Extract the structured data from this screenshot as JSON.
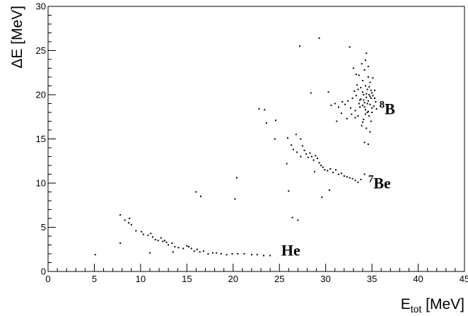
{
  "chart_data": {
    "type": "scatter",
    "xlabel": {
      "main": "E",
      "sub": "tot",
      "unit": " [MeV]"
    },
    "ylabel": "ΔE [MeV]",
    "xlim": [
      0,
      45
    ],
    "ylim": [
      0,
      30
    ],
    "xticks": [
      "0",
      "5",
      "10",
      "15",
      "20",
      "25",
      "30",
      "35",
      "40",
      "45"
    ],
    "yticks": [
      "0",
      "5",
      "10",
      "15",
      "20",
      "25",
      "30"
    ],
    "grid": false,
    "annotations": [
      {
        "sup": "8",
        "base": "B",
        "x": 35.8,
        "y": 17.8
      },
      {
        "sup": "7",
        "base": "Be",
        "x": 34.6,
        "y": 9.4
      },
      {
        "sup": "",
        "base": "He",
        "x": 25.2,
        "y": 1.8
      }
    ],
    "series": [
      {
        "marker_color": "#000000",
        "points": [
          [
            5.1,
            1.9
          ],
          [
            7.8,
            6.4
          ],
          [
            7.8,
            3.2
          ],
          [
            8.3,
            5.8
          ],
          [
            8.7,
            5.5
          ],
          [
            8.8,
            6.0
          ],
          [
            9.0,
            5.3
          ],
          [
            9.5,
            4.6
          ],
          [
            10.1,
            4.5
          ],
          [
            10.3,
            4.2
          ],
          [
            10.8,
            4.1
          ],
          [
            11.1,
            4.3
          ],
          [
            11.3,
            3.9
          ],
          [
            11.6,
            3.6
          ],
          [
            11.9,
            3.5
          ],
          [
            12.2,
            3.8
          ],
          [
            12.4,
            3.4
          ],
          [
            12.6,
            3.5
          ],
          [
            12.8,
            3.3
          ],
          [
            13.0,
            3.0
          ],
          [
            13.4,
            3.2
          ],
          [
            13.7,
            2.8
          ],
          [
            14.1,
            2.7
          ],
          [
            14.6,
            2.6
          ],
          [
            15.0,
            2.9
          ],
          [
            15.2,
            2.8
          ],
          [
            15.5,
            2.6
          ],
          [
            15.8,
            2.3
          ],
          [
            16.1,
            2.5
          ],
          [
            16.4,
            2.2
          ],
          [
            16.8,
            2.3
          ],
          [
            17.3,
            2.0
          ],
          [
            17.8,
            2.1
          ],
          [
            18.2,
            2.1
          ],
          [
            18.7,
            2.0
          ],
          [
            19.3,
            1.9
          ],
          [
            19.9,
            2.0
          ],
          [
            20.5,
            2.0
          ],
          [
            21.2,
            2.0
          ],
          [
            22.0,
            1.9
          ],
          [
            22.6,
            1.9
          ],
          [
            23.3,
            1.8
          ],
          [
            24.0,
            1.8
          ],
          [
            11.0,
            2.1
          ],
          [
            13.5,
            2.2
          ],
          [
            16.0,
            9.0
          ],
          [
            16.5,
            8.5
          ],
          [
            20.2,
            8.2
          ],
          [
            20.4,
            10.6
          ],
          [
            22.8,
            18.4
          ],
          [
            23.4,
            18.3
          ],
          [
            23.6,
            16.8
          ],
          [
            24.5,
            15.0
          ],
          [
            24.6,
            17.1
          ],
          [
            25.8,
            12.2
          ],
          [
            25.9,
            15.1
          ],
          [
            26.0,
            9.1
          ],
          [
            26.3,
            14.3
          ],
          [
            26.4,
            6.1
          ],
          [
            26.8,
            15.5
          ],
          [
            27.0,
            5.8
          ],
          [
            27.3,
            15.0
          ],
          [
            27.2,
            25.5
          ],
          [
            26.5,
            13.8
          ],
          [
            26.9,
            13.5
          ],
          [
            27.3,
            13.0
          ],
          [
            27.5,
            14.2
          ],
          [
            27.7,
            13.7
          ],
          [
            27.9,
            13.3
          ],
          [
            28.1,
            12.9
          ],
          [
            28.3,
            13.4
          ],
          [
            28.5,
            13.0
          ],
          [
            28.7,
            12.6
          ],
          [
            28.9,
            13.1
          ],
          [
            29.1,
            12.8
          ],
          [
            29.3,
            12.3
          ],
          [
            29.5,
            12.0
          ],
          [
            29.7,
            11.8
          ],
          [
            29.9,
            11.5
          ],
          [
            30.2,
            11.4
          ],
          [
            30.5,
            11.6
          ],
          [
            30.8,
            11.2
          ],
          [
            31.1,
            11.5
          ],
          [
            31.4,
            11.0
          ],
          [
            31.7,
            11.1
          ],
          [
            32.0,
            10.8
          ],
          [
            32.3,
            10.7
          ],
          [
            32.6,
            10.6
          ],
          [
            32.9,
            10.5
          ],
          [
            33.2,
            10.3
          ],
          [
            33.5,
            10.1
          ],
          [
            33.8,
            10.4
          ],
          [
            34.2,
            11.0
          ],
          [
            28.8,
            11.3
          ],
          [
            29.6,
            8.4
          ],
          [
            30.4,
            9.2
          ],
          [
            28.4,
            20.2
          ],
          [
            29.3,
            26.4
          ],
          [
            30.3,
            20.3
          ],
          [
            32.6,
            25.4
          ],
          [
            33.3,
            22.3
          ],
          [
            34.2,
            14.6
          ],
          [
            34.6,
            14.4
          ],
          [
            34.4,
            24.7
          ],
          [
            30.6,
            18.8
          ],
          [
            31.0,
            19.0
          ],
          [
            31.4,
            18.6
          ],
          [
            31.8,
            19.2
          ],
          [
            32.1,
            18.9
          ],
          [
            32.4,
            19.3
          ],
          [
            32.7,
            18.5
          ],
          [
            32.9,
            19.6
          ],
          [
            33.1,
            20.4
          ],
          [
            33.2,
            18.2
          ],
          [
            33.3,
            19.9
          ],
          [
            33.4,
            21.1
          ],
          [
            33.5,
            17.6
          ],
          [
            33.6,
            22.2
          ],
          [
            33.7,
            19.4
          ],
          [
            33.8,
            20.8
          ],
          [
            33.9,
            16.5
          ],
          [
            33.9,
            23.5
          ],
          [
            34.0,
            18.8
          ],
          [
            34.0,
            21.6
          ],
          [
            34.1,
            17.2
          ],
          [
            34.1,
            20.0
          ],
          [
            34.2,
            22.8
          ],
          [
            34.2,
            19.1
          ],
          [
            34.3,
            18.3
          ],
          [
            34.3,
            21.0
          ],
          [
            34.4,
            16.2
          ],
          [
            34.4,
            19.7
          ],
          [
            34.5,
            20.6
          ],
          [
            34.5,
            18.0
          ],
          [
            34.6,
            22.0
          ],
          [
            34.6,
            19.3
          ],
          [
            34.7,
            17.6
          ],
          [
            34.7,
            20.9
          ],
          [
            34.8,
            18.9
          ],
          [
            34.8,
            21.4
          ],
          [
            34.9,
            19.6
          ],
          [
            34.9,
            17.0
          ],
          [
            35.0,
            20.2
          ],
          [
            35.0,
            18.5
          ],
          [
            35.1,
            19.9
          ],
          [
            35.1,
            21.9
          ],
          [
            35.2,
            18.7
          ],
          [
            35.3,
            20.5
          ],
          [
            35.4,
            19.2
          ],
          [
            35.5,
            18.4
          ],
          [
            33.6,
            19.0
          ],
          [
            33.8,
            19.5
          ],
          [
            34.0,
            20.3
          ],
          [
            34.2,
            18.6
          ],
          [
            34.4,
            20.1
          ],
          [
            34.6,
            18.1
          ],
          [
            34.8,
            19.8
          ],
          [
            35.0,
            18.0
          ],
          [
            33.7,
            18.6
          ],
          [
            34.1,
            19.4
          ],
          [
            34.5,
            19.0
          ],
          [
            34.9,
            20.5
          ],
          [
            35.3,
            19.6
          ],
          [
            34.3,
            17.8
          ],
          [
            34.7,
            20.0
          ],
          [
            34.0,
            16.9
          ],
          [
            33.5,
            20.6
          ],
          [
            33.2,
            17.4
          ],
          [
            32.8,
            17.8
          ],
          [
            32.3,
            17.3
          ],
          [
            31.7,
            17.9
          ],
          [
            31.2,
            17.0
          ],
          [
            34.3,
            23.9
          ],
          [
            34.6,
            23.2
          ],
          [
            33.0,
            23.0
          ],
          [
            34.8,
            15.8
          ]
        ]
      }
    ]
  }
}
